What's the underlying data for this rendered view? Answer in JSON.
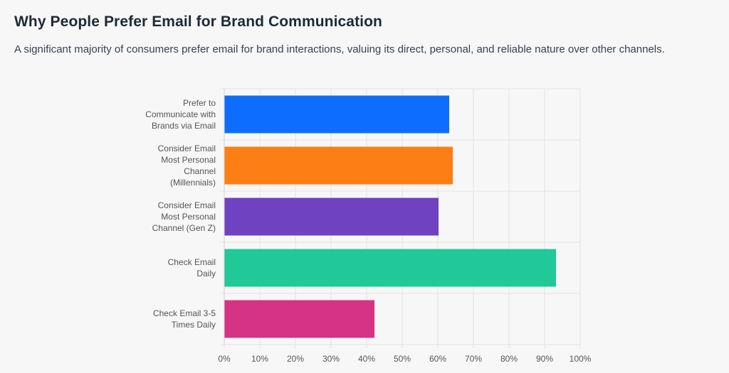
{
  "header": {
    "title": "Why People Prefer Email for Brand Communication",
    "subtitle": "A significant majority of consumers prefer email for brand interactions, valuing its direct, personal, and reliable nature over other channels."
  },
  "chart_data": {
    "type": "bar",
    "orientation": "horizontal",
    "categories": [
      [
        "Prefer to",
        "Communicate with",
        "Brands via Email"
      ],
      [
        "Consider Email",
        "Most Personal",
        "Channel",
        "(Millennials)"
      ],
      [
        "Consider Email",
        "Most Personal",
        "Channel (Gen Z)"
      ],
      [
        "Check Email",
        "Daily"
      ],
      [
        "Check Email 3-5",
        "Times Daily"
      ]
    ],
    "values": [
      63,
      64,
      60,
      93,
      42
    ],
    "colors": [
      "#0d6efd",
      "#fd7e14",
      "#6f42c1",
      "#20c997",
      "#d63384"
    ],
    "xlim": [
      0,
      100
    ],
    "xticks": [
      "0%",
      "10%",
      "20%",
      "30%",
      "40%",
      "50%",
      "60%",
      "70%",
      "80%",
      "90%",
      "100%"
    ],
    "grid": true,
    "legend": "none"
  }
}
